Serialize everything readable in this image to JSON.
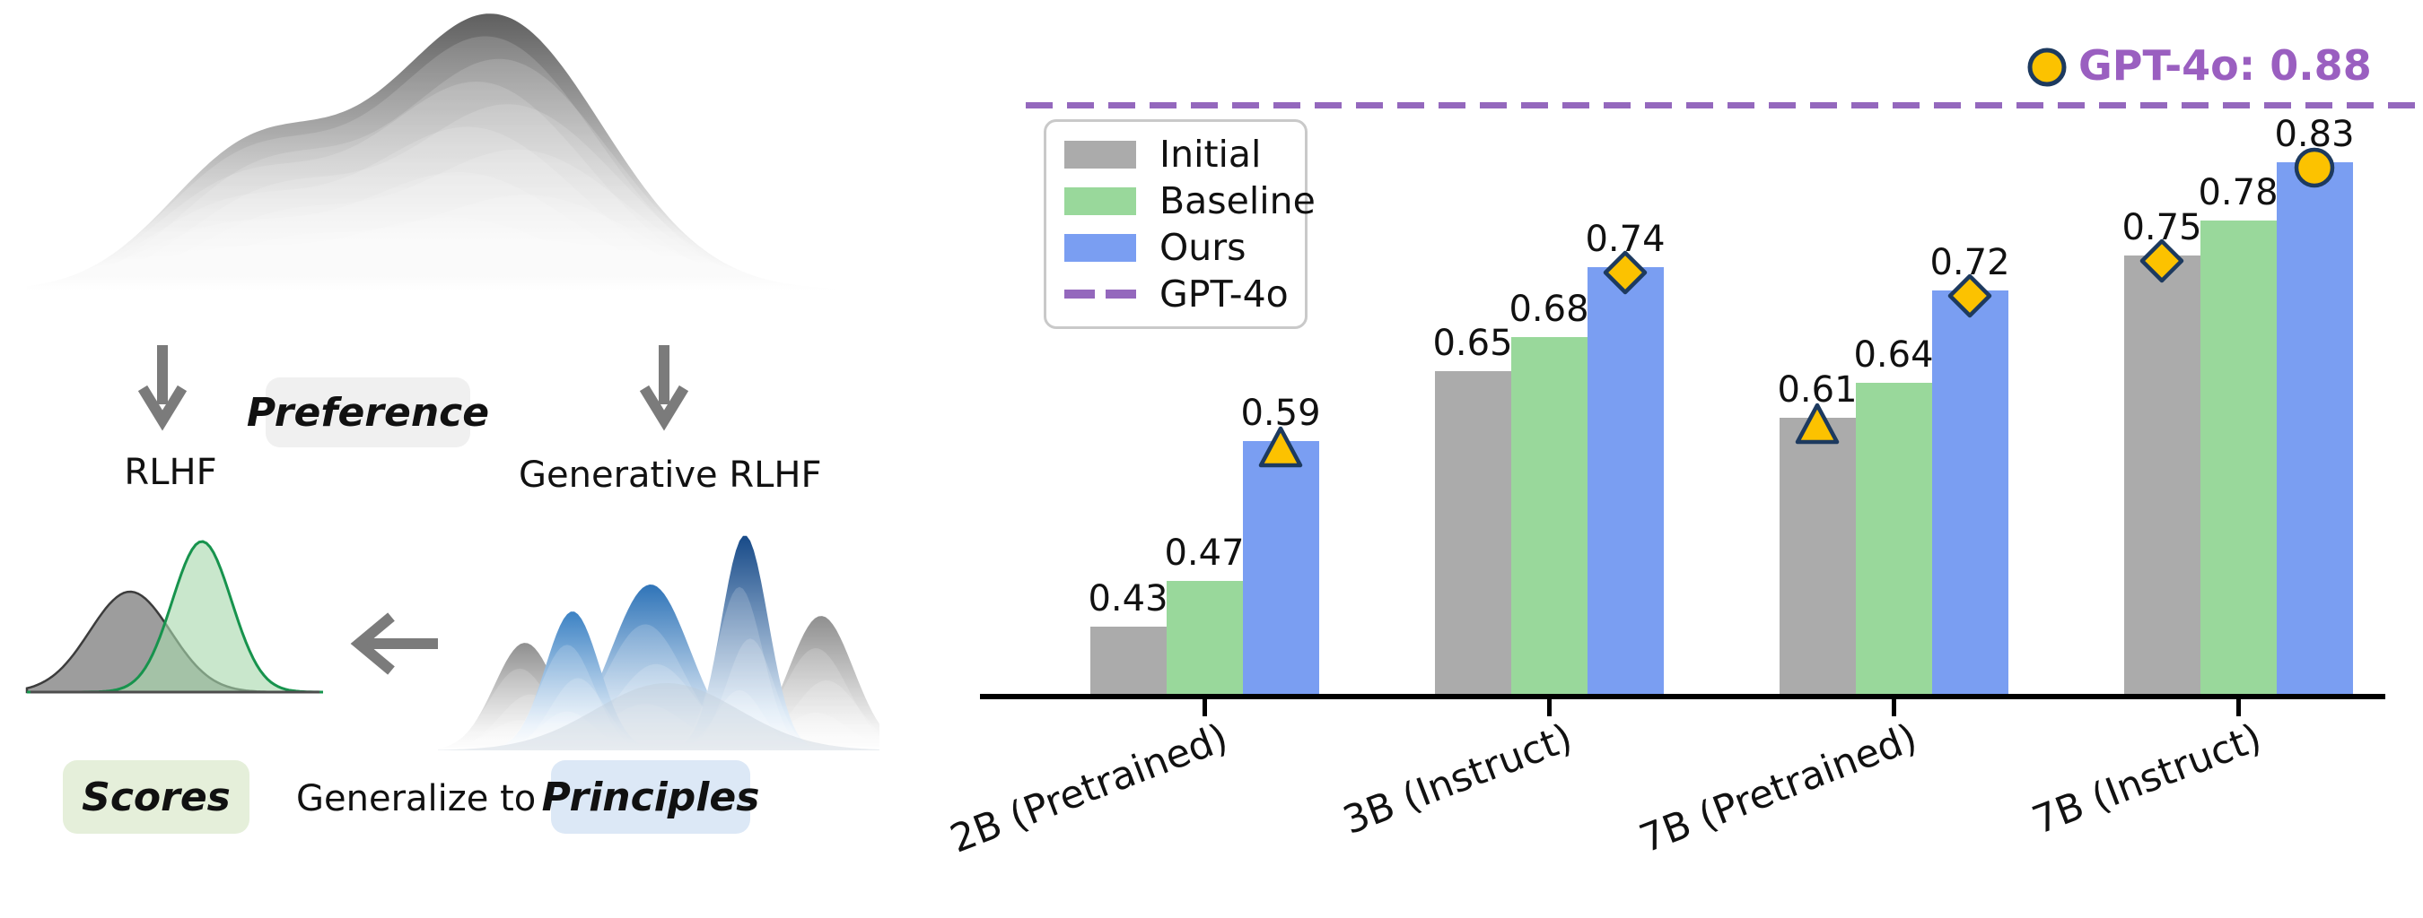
{
  "diagram": {
    "rlhf_label": "RLHF",
    "generative_rlhf_label": "Generative RLHF",
    "preference_label": "Preference",
    "scores_label": "Scores",
    "generalize_label": "Generalize to",
    "principles_label": "Principles",
    "box_colors": {
      "preference": "#f0f0f0",
      "scores": "#e5efda",
      "principles": "#dce8f6"
    },
    "arrow_color": "#7b7b7b"
  },
  "chart_data": {
    "type": "bar",
    "categories": [
      "2B (Pretrained)",
      "3B (Instruct)",
      "7B (Pretrained)",
      "7B (Instruct)"
    ],
    "series": [
      {
        "name": "Initial",
        "color": "#ababab",
        "values": [
          0.43,
          0.65,
          0.61,
          0.75
        ]
      },
      {
        "name": "Baseline",
        "color": "#99d89b",
        "values": [
          0.47,
          0.68,
          0.64,
          0.78
        ]
      },
      {
        "name": "Ours",
        "color": "#7a9ef2",
        "values": [
          0.59,
          0.74,
          0.72,
          0.83
        ]
      }
    ],
    "value_labels": [
      "0.43",
      "0.47",
      "0.59",
      "0.65",
      "0.68",
      "0.74",
      "0.61",
      "0.64",
      "0.72",
      "0.75",
      "0.78",
      "0.83"
    ],
    "reference_line": {
      "label": "GPT-4o",
      "value": 0.88,
      "color": "#9468bd",
      "style": "dashed"
    },
    "annotation": {
      "text": "GPT-4o: 0.88",
      "color": "#9a5fc0",
      "marker": "circle"
    },
    "markers": [
      {
        "category_index": 0,
        "series": "Ours",
        "shape": "triangle"
      },
      {
        "category_index": 1,
        "series": "Ours",
        "shape": "diamond"
      },
      {
        "category_index": 2,
        "series": "Initial",
        "shape": "triangle"
      },
      {
        "category_index": 2,
        "series": "Ours",
        "shape": "diamond"
      },
      {
        "category_index": 3,
        "series": "Initial",
        "shape": "diamond"
      },
      {
        "category_index": 3,
        "series": "Ours",
        "shape": "circle"
      }
    ],
    "marker_style": {
      "fill": "#fcc200",
      "stroke": "#1d3a5f"
    },
    "ylim": [
      0.37,
      0.93
    ],
    "grid": false,
    "legend": {
      "position": "upper-left",
      "items": [
        {
          "label": "Initial",
          "swatch": "#ababab",
          "type": "patch"
        },
        {
          "label": "Baseline",
          "swatch": "#99d89b",
          "type": "patch"
        },
        {
          "label": "Ours",
          "swatch": "#7a9ef2",
          "type": "patch"
        },
        {
          "label": "GPT-4o",
          "swatch": "#9468bd",
          "type": "dash"
        }
      ]
    }
  }
}
